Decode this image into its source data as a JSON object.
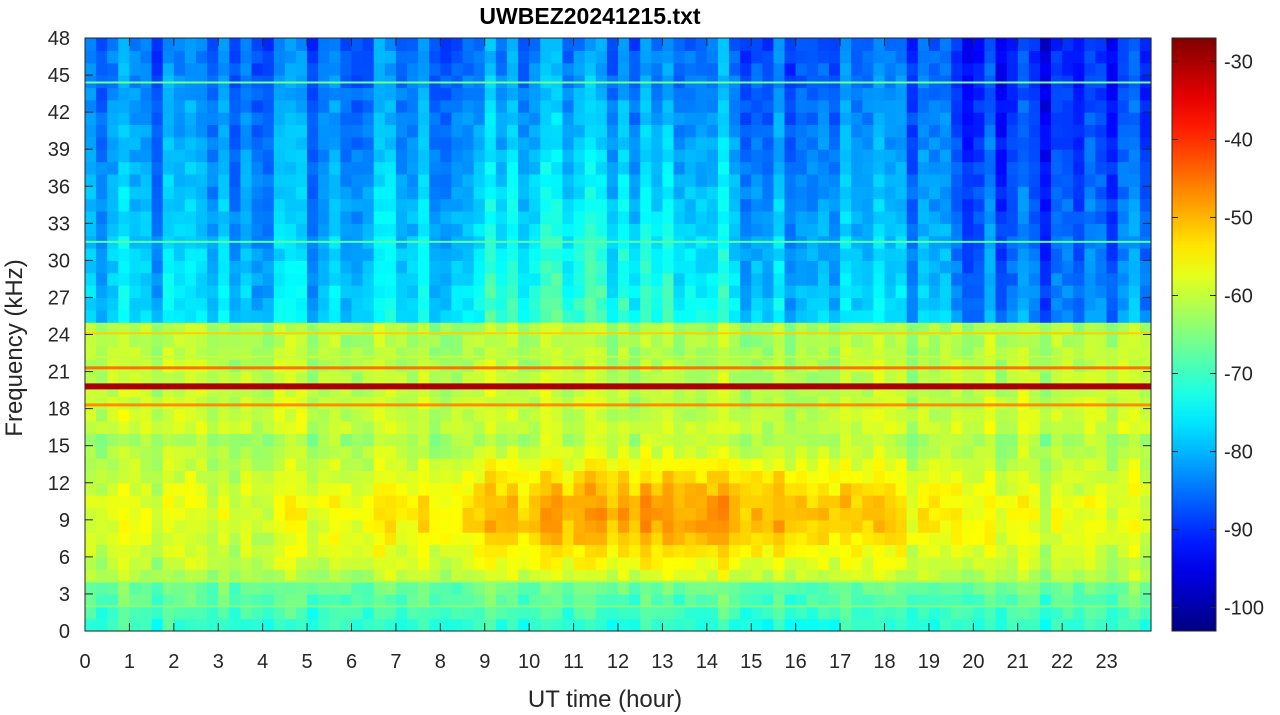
{
  "chart_data": {
    "type": "heatmap",
    "title": "UWBEZ20241215.txt",
    "xlabel": "UT time (hour)",
    "ylabel": "Frequency (kHz)",
    "xlim": [
      0,
      24
    ],
    "ylim": [
      0,
      48
    ],
    "x_ticks": [
      0,
      1,
      2,
      3,
      4,
      5,
      6,
      7,
      8,
      9,
      10,
      11,
      12,
      13,
      14,
      15,
      16,
      17,
      18,
      19,
      20,
      21,
      22,
      23
    ],
    "y_ticks": [
      0,
      3,
      6,
      9,
      12,
      15,
      18,
      21,
      24,
      27,
      30,
      33,
      36,
      39,
      42,
      45,
      48
    ],
    "colorbar": {
      "colormap": "jet",
      "range": [
        -103,
        -27
      ],
      "ticks": [
        -30,
        -40,
        -50,
        -60,
        -70,
        -80,
        -90,
        -100
      ]
    },
    "features": {
      "background_high_freq_db": -78,
      "broadband_low_band": {
        "f_range_khz": [
          4.5,
          16
        ],
        "peak_db": -48,
        "peak_hours": [
          10.5,
          16
        ]
      },
      "narrowband_lines": [
        {
          "f_khz": 19.8,
          "db": -30
        },
        {
          "f_khz": 21.3,
          "db": -45
        },
        {
          "f_khz": 18.3,
          "db": -47
        },
        {
          "f_khz": 24.1,
          "db": -52
        },
        {
          "f_khz": 22.2,
          "db": -60
        },
        {
          "f_khz": 44.4,
          "db": -66
        },
        {
          "f_khz": 31.5,
          "db": -68
        },
        {
          "f_khz": 4.0,
          "db": -62
        },
        {
          "f_khz": 2.0,
          "db": -64
        }
      ]
    }
  }
}
